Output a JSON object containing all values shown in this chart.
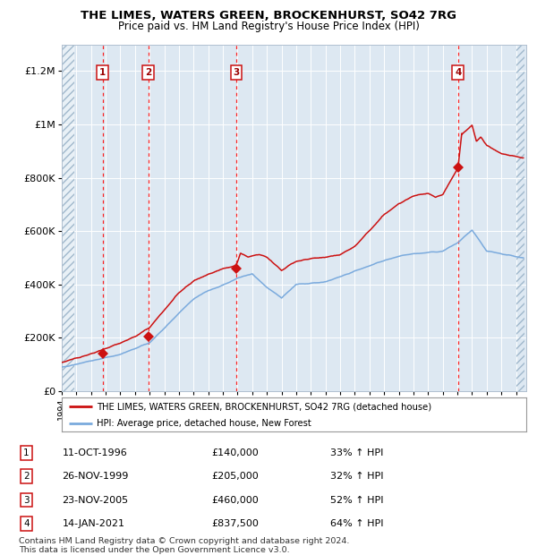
{
  "title1": "THE LIMES, WATERS GREEN, BROCKENHURST, SO42 7RG",
  "title2": "Price paid vs. HM Land Registry's House Price Index (HPI)",
  "y_ticks": [
    0,
    200000,
    400000,
    600000,
    800000,
    1000000,
    1200000
  ],
  "y_tick_labels": [
    "£0",
    "£200K",
    "£400K",
    "£600K",
    "£800K",
    "£1M",
    "£1.2M"
  ],
  "hpi_color": "#7aaadd",
  "price_color": "#cc1111",
  "plot_bg": "#dde8f2",
  "hatch_color": "#b8cce0",
  "sale_points": [
    {
      "num": 1,
      "year": 1996.78,
      "price": 140000,
      "date": "11-OCT-1996",
      "pct": "33%",
      "dir": "↑"
    },
    {
      "num": 2,
      "year": 1999.9,
      "price": 205000,
      "date": "26-NOV-1999",
      "pct": "32%",
      "dir": "↑"
    },
    {
      "num": 3,
      "year": 2005.9,
      "price": 460000,
      "date": "23-NOV-2005",
      "pct": "52%",
      "dir": "↑"
    },
    {
      "num": 4,
      "year": 2021.04,
      "price": 837500,
      "date": "14-JAN-2021",
      "pct": "64%",
      "dir": "↑"
    }
  ],
  "legend_line1": "THE LIMES, WATERS GREEN, BROCKENHURST, SO42 7RG (detached house)",
  "legend_line2": "HPI: Average price, detached house, New Forest",
  "footer1": "Contains HM Land Registry data © Crown copyright and database right 2024.",
  "footer2": "This data is licensed under the Open Government Licence v3.0."
}
